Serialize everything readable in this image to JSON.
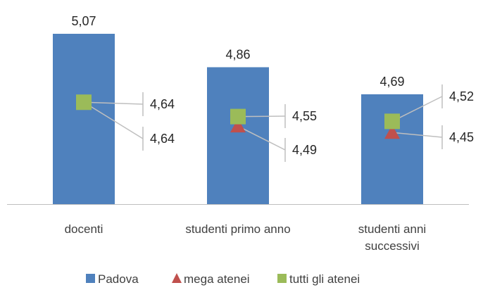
{
  "chart_data": {
    "type": "bar",
    "categories": [
      [
        "docenti"
      ],
      [
        "studenti primo anno"
      ],
      [
        "studenti anni",
        "successivi"
      ]
    ],
    "series": [
      {
        "name": "Padova",
        "kind": "bar",
        "marker": "square",
        "color": "#4F81BD",
        "values": [
          5.07,
          4.86,
          4.69
        ]
      },
      {
        "name": "mega atenei",
        "kind": "marker",
        "marker": "triangle",
        "color": "#C0504D",
        "values": [
          4.64,
          4.49,
          4.45
        ]
      },
      {
        "name": "tutti gli atenei",
        "kind": "marker",
        "marker": "square",
        "color": "#9BBB59",
        "values": [
          4.64,
          4.55,
          4.52
        ]
      }
    ],
    "data_labels": {
      "bars": [
        "5,07",
        "4,86",
        "4,69"
      ],
      "mega atenei": [
        "4,64",
        "4,49",
        "4,45"
      ],
      "tutti gli atenei": [
        "4,64",
        "4,55",
        "4,52"
      ]
    },
    "ylim": [
      4.0,
      5.2
    ],
    "title": "",
    "xlabel": "",
    "ylabel": "",
    "grid": false,
    "legend_position": "bottom"
  }
}
